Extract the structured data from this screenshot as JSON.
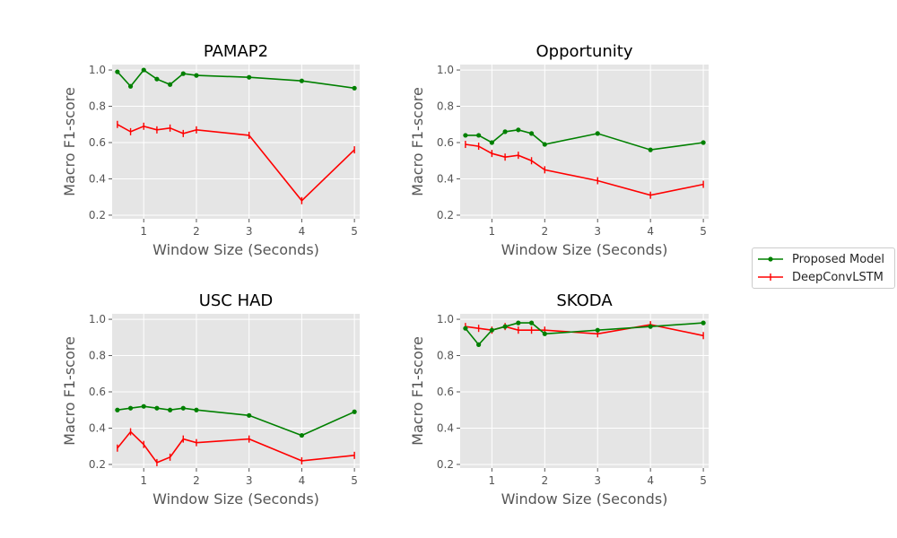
{
  "chart_data": [
    {
      "type": "line",
      "title": "PAMAP2",
      "xlabel": "Window Size (Seconds)",
      "ylabel": "Macro F1-score",
      "xlim": [
        0.4,
        5.1
      ],
      "ylim": [
        0.18,
        1.03
      ],
      "xticks": [
        1,
        2,
        3,
        4,
        5
      ],
      "yticks": [
        0.2,
        0.4,
        0.6,
        0.8,
        1.0
      ],
      "grid": true,
      "x": [
        0.5,
        0.75,
        1.0,
        1.25,
        1.5,
        1.75,
        2.0,
        3.0,
        4.0,
        5.0
      ],
      "series": [
        {
          "name": "Proposed Model",
          "color": "#008000",
          "marker": "dot",
          "values": [
            0.99,
            0.91,
            1.0,
            0.95,
            0.92,
            0.98,
            0.97,
            0.96,
            0.94,
            0.9
          ]
        },
        {
          "name": "DeepConvLSTM",
          "color": "#ff0000",
          "marker": "plus",
          "values": [
            0.7,
            0.66,
            0.69,
            0.67,
            0.68,
            0.65,
            0.67,
            0.64,
            0.28,
            0.56
          ]
        }
      ]
    },
    {
      "type": "line",
      "title": "Opportunity",
      "xlabel": "Window Size (Seconds)",
      "ylabel": "Macro F1-score",
      "xlim": [
        0.4,
        5.1
      ],
      "ylim": [
        0.18,
        1.03
      ],
      "xticks": [
        1,
        2,
        3,
        4,
        5
      ],
      "yticks": [
        0.2,
        0.4,
        0.6,
        0.8,
        1.0
      ],
      "grid": true,
      "x": [
        0.5,
        0.75,
        1.0,
        1.25,
        1.5,
        1.75,
        2.0,
        3.0,
        4.0,
        5.0
      ],
      "series": [
        {
          "name": "Proposed Model",
          "color": "#008000",
          "marker": "dot",
          "values": [
            0.64,
            0.64,
            0.6,
            0.66,
            0.67,
            0.65,
            0.59,
            0.65,
            0.56,
            0.6
          ]
        },
        {
          "name": "DeepConvLSTM",
          "color": "#ff0000",
          "marker": "plus",
          "values": [
            0.59,
            0.58,
            0.54,
            0.52,
            0.53,
            0.5,
            0.45,
            0.39,
            0.31,
            0.37
          ]
        }
      ]
    },
    {
      "type": "line",
      "title": "USC HAD",
      "xlabel": "Window Size (Seconds)",
      "ylabel": "Macro F1-score",
      "xlim": [
        0.4,
        5.1
      ],
      "ylim": [
        0.18,
        1.03
      ],
      "xticks": [
        1,
        2,
        3,
        4,
        5
      ],
      "yticks": [
        0.2,
        0.4,
        0.6,
        0.8,
        1.0
      ],
      "grid": true,
      "x": [
        0.5,
        0.75,
        1.0,
        1.25,
        1.5,
        1.75,
        2.0,
        3.0,
        4.0,
        5.0
      ],
      "series": [
        {
          "name": "Proposed Model",
          "color": "#008000",
          "marker": "dot",
          "values": [
            0.5,
            0.51,
            0.52,
            0.51,
            0.5,
            0.51,
            0.5,
            0.47,
            0.36,
            0.49
          ]
        },
        {
          "name": "DeepConvLSTM",
          "color": "#ff0000",
          "marker": "plus",
          "values": [
            0.29,
            0.38,
            0.31,
            0.21,
            0.24,
            0.34,
            0.32,
            0.34,
            0.22,
            0.25
          ]
        }
      ]
    },
    {
      "type": "line",
      "title": "SKODA",
      "xlabel": "Window Size (Seconds)",
      "ylabel": "Macro F1-score",
      "xlim": [
        0.4,
        5.1
      ],
      "ylim": [
        0.18,
        1.03
      ],
      "xticks": [
        1,
        2,
        3,
        4,
        5
      ],
      "yticks": [
        0.2,
        0.4,
        0.6,
        0.8,
        1.0
      ],
      "grid": true,
      "x": [
        0.5,
        0.75,
        1.0,
        1.25,
        1.5,
        1.75,
        2.0,
        3.0,
        4.0,
        5.0
      ],
      "series": [
        {
          "name": "Proposed Model",
          "color": "#008000",
          "marker": "dot",
          "values": [
            0.95,
            0.86,
            0.94,
            0.96,
            0.98,
            0.98,
            0.92,
            0.94,
            0.96,
            0.98
          ]
        },
        {
          "name": "DeepConvLSTM",
          "color": "#ff0000",
          "marker": "plus",
          "values": [
            0.96,
            0.95,
            0.94,
            0.96,
            0.94,
            0.94,
            0.94,
            0.92,
            0.97,
            0.91
          ]
        }
      ]
    }
  ],
  "legend": {
    "placement": "right",
    "items": [
      {
        "label": "Proposed Model",
        "color": "#008000",
        "marker": "dot"
      },
      {
        "label": "DeepConvLSTM",
        "color": "#ff0000",
        "marker": "plus"
      }
    ]
  },
  "style": {
    "plot_background": "#e5e5e5",
    "grid_color": "#ffffff",
    "text_color": "#262626",
    "tick_color": "#555555"
  }
}
